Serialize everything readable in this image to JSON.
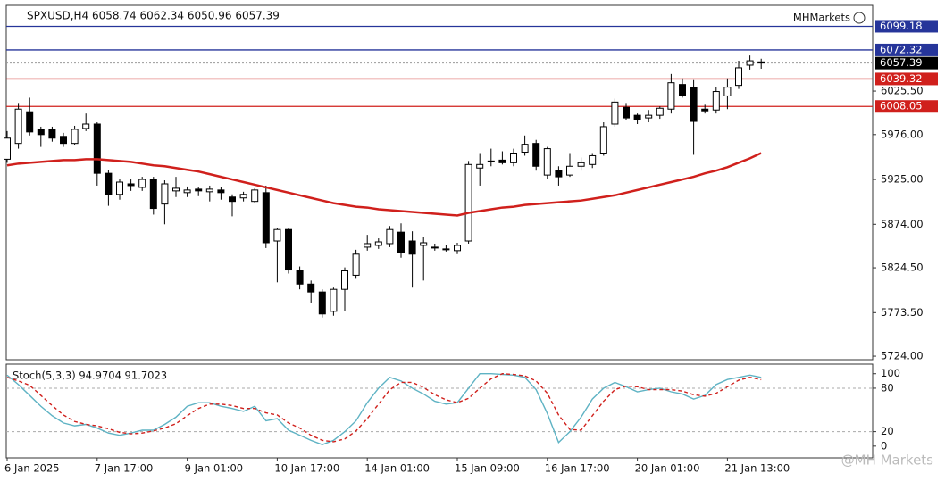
{
  "title": "SPXUSD,H4  6058.74 6062.34 6050.96 6057.39",
  "watermark": "MHMarkets",
  "footer_watermark": "@MH Markets",
  "chart_data": [
    {
      "type": "candlestick",
      "ylim": [
        5720,
        6123
      ],
      "yticks": [
        {
          "value": 6025.5,
          "label": "6025.50"
        },
        {
          "value": 5976,
          "label": "5976.00"
        },
        {
          "value": 5925,
          "label": "5925.00"
        },
        {
          "value": 5874,
          "label": "5874.00"
        },
        {
          "value": 5824.5,
          "label": "5824.50"
        },
        {
          "value": 5773.5,
          "label": "5773.50"
        },
        {
          "value": 5724,
          "label": "5724.00"
        }
      ],
      "up_color": "#ffffff",
      "down_color": "#000000",
      "open": [
        5948,
        5966,
        6002,
        5982,
        5982,
        5974,
        5966,
        5983,
        5988,
        5932,
        5908,
        5920,
        5916,
        5925,
        5897,
        5912,
        5910,
        5914,
        5911,
        5913,
        5905,
        5904,
        5900,
        5910,
        5855,
        5868,
        5822,
        5806,
        5797,
        5775,
        5800,
        5816,
        5848,
        5850,
        5852,
        5865,
        5855,
        5850,
        5847,
        5846,
        5844,
        5855,
        5938,
        5945,
        5947,
        5944,
        5956,
        5966,
        5930,
        5935,
        5930,
        5940,
        5942,
        5955,
        5988,
        6007,
        5998,
        5995,
        5998,
        6005,
        6033,
        6030,
        6005,
        6004,
        6020,
        6032,
        6055,
        6058.74
      ],
      "high": [
        5980,
        6012,
        6018,
        5985,
        5985,
        5978,
        5986,
        6000,
        5990,
        5936,
        5926,
        5925,
        5928,
        5928,
        5924,
        5928,
        5917,
        5916,
        5918,
        5916,
        5908,
        5911,
        5915,
        5918,
        5870,
        5870,
        5826,
        5810,
        5800,
        5802,
        5825,
        5845,
        5862,
        5858,
        5872,
        5875,
        5866,
        5860,
        5852,
        5850,
        5853,
        5946,
        5955,
        5960,
        5957,
        5960,
        5975,
        5970,
        5962,
        5940,
        5955,
        5950,
        5955,
        5990,
        6017,
        6012,
        6000,
        6004,
        6008,
        6045,
        6040,
        6038,
        6010,
        6030,
        6040,
        6060,
        6066,
        6062.34
      ],
      "low": [
        5944,
        5960,
        5975,
        5962,
        5968,
        5962,
        5964,
        5980,
        5918,
        5895,
        5902,
        5912,
        5912,
        5885,
        5874,
        5905,
        5905,
        5906,
        5900,
        5902,
        5883,
        5900,
        5898,
        5847,
        5808,
        5818,
        5800,
        5785,
        5768,
        5770,
        5775,
        5812,
        5844,
        5846,
        5848,
        5836,
        5802,
        5810,
        5844,
        5843,
        5840,
        5852,
        5918,
        5940,
        5942,
        5940,
        5952,
        5935,
        5926,
        5918,
        5928,
        5935,
        5938,
        5952,
        5985,
        5993,
        5988,
        5990,
        5994,
        6000,
        6018,
        5953,
        6000,
        6000,
        6005,
        6028,
        6050,
        6050.96
      ],
      "close": [
        5972,
        6005,
        5979,
        5976,
        5972,
        5966,
        5982,
        5988,
        5932,
        5908,
        5922,
        5918,
        5925,
        5892,
        5920,
        5915,
        5913,
        5912,
        5914,
        5910,
        5900,
        5908,
        5913,
        5853,
        5868,
        5822,
        5806,
        5797,
        5772,
        5800,
        5821,
        5840,
        5852,
        5854,
        5868,
        5842,
        5840,
        5853,
        5848,
        5845,
        5850,
        5942,
        5942,
        5946,
        5944,
        5955,
        5965,
        5940,
        5960,
        5928,
        5940,
        5944,
        5952,
        5985,
        6013,
        5995,
        5993,
        5998,
        6006,
        6035,
        6020,
        5991,
        6003,
        6025,
        6030,
        6052,
        6060,
        6057.39
      ],
      "ma_color": "#d0201c",
      "ma_values": [
        5941,
        5943,
        5944,
        5945,
        5946,
        5947,
        5947,
        5948,
        5948,
        5947,
        5946,
        5945,
        5943,
        5941,
        5940,
        5938,
        5936,
        5934,
        5931,
        5928,
        5925,
        5922,
        5919,
        5916,
        5913,
        5910,
        5907,
        5904,
        5901,
        5898,
        5896,
        5894,
        5893,
        5891,
        5890,
        5889,
        5888,
        5887,
        5886,
        5885,
        5884,
        5887,
        5889,
        5891,
        5893,
        5894,
        5896,
        5897,
        5898,
        5899,
        5900,
        5901,
        5903,
        5905,
        5907,
        5910,
        5913,
        5916,
        5919,
        5922,
        5925,
        5928,
        5932,
        5935,
        5939,
        5944,
        5949,
        5955
      ],
      "levels": [
        {
          "value": 6099.18,
          "color": "#26359a"
        },
        {
          "value": 6072.32,
          "color": "#26359a"
        },
        {
          "value": 6057.39,
          "color": "#000000",
          "dotted": true
        },
        {
          "value": 6039.32,
          "color": "#d0201c"
        },
        {
          "value": 6008.05,
          "color": "#d0201c"
        }
      ]
    },
    {
      "type": "line",
      "title": "Stoch(5,3,3) 94.9704 91.7023",
      "ylim": [
        -15,
        112
      ],
      "yticks": [
        100,
        80,
        20,
        0
      ],
      "levels": [
        80,
        20
      ],
      "categories": [
        "6 Jan 2025",
        null,
        null,
        null,
        null,
        null,
        null,
        null,
        "7 Jan 17:00",
        null,
        null,
        null,
        null,
        null,
        null,
        null,
        "9 Jan 01:00",
        null,
        null,
        null,
        null,
        null,
        null,
        null,
        "10 Jan 17:00",
        null,
        null,
        null,
        null,
        null,
        null,
        null,
        "14 Jan 01:00",
        null,
        null,
        null,
        null,
        null,
        null,
        null,
        "15 Jan 09:00",
        null,
        null,
        null,
        null,
        null,
        null,
        null,
        "16 Jan 17:00",
        null,
        null,
        null,
        null,
        null,
        null,
        null,
        "20 Jan 01:00",
        null,
        null,
        null,
        null,
        null,
        null,
        null,
        "21 Jan 13:00",
        null,
        null,
        null
      ],
      "series": [
        {
          "color": "#5fb3c4",
          "values": [
            98,
            85,
            70,
            55,
            42,
            32,
            28,
            30,
            25,
            18,
            15,
            18,
            22,
            22,
            30,
            40,
            55,
            60,
            60,
            55,
            52,
            48,
            55,
            35,
            38,
            22,
            15,
            8,
            2,
            8,
            20,
            35,
            60,
            80,
            95,
            90,
            80,
            72,
            62,
            58,
            60,
            80,
            100,
            100,
            99,
            98,
            95,
            78,
            45,
            5,
            20,
            40,
            65,
            80,
            88,
            82,
            75,
            78,
            80,
            75,
            72,
            65,
            70,
            85,
            92,
            95,
            98,
            94.9704
          ]
        },
        {
          "color": "#d0201c",
          "dashed": true,
          "values": [
            95,
            90,
            84,
            70,
            56,
            43,
            34,
            30,
            28,
            24,
            19,
            17,
            18,
            21,
            25,
            31,
            42,
            52,
            58,
            58,
            56,
            52,
            52,
            46,
            43,
            32,
            25,
            15,
            8,
            6,
            10,
            21,
            38,
            58,
            78,
            88,
            88,
            81,
            71,
            64,
            60,
            66,
            80,
            93,
            100,
            99,
            97,
            90,
            73,
            43,
            23,
            22,
            42,
            62,
            78,
            83,
            82,
            78,
            78,
            78,
            76,
            71,
            69,
            73,
            82,
            91,
            95,
            91.7023
          ]
        }
      ]
    }
  ]
}
